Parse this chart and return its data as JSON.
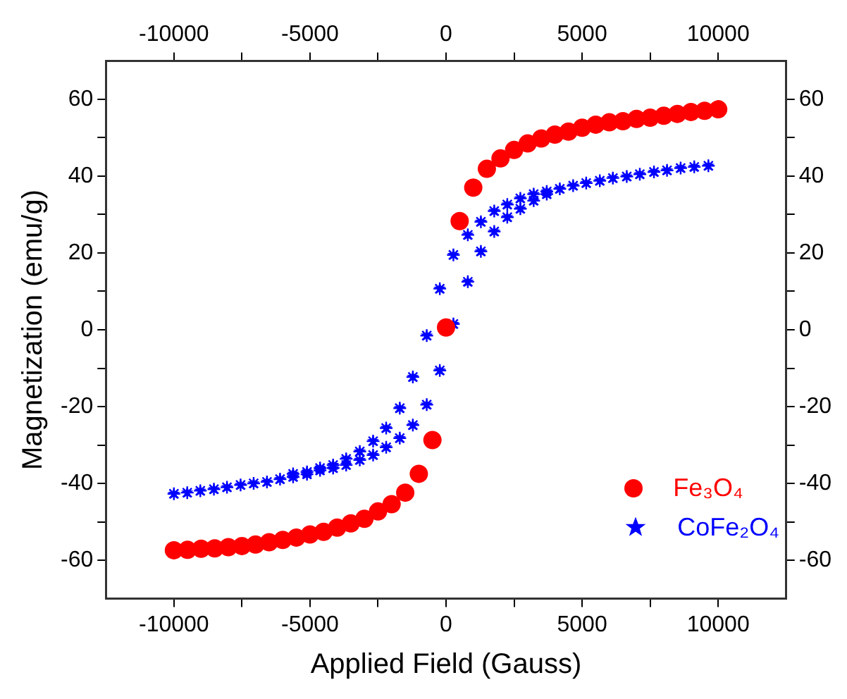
{
  "chart_data": {
    "type": "scatter",
    "xlabel": "Applied Field (Gauss)",
    "ylabel": "Magnetization (emu/g)",
    "xlim": [
      -12500,
      12500
    ],
    "ylim": [
      -70,
      70
    ],
    "x2lim": [
      -12500,
      12500
    ],
    "y2lim": [
      -70,
      70
    ],
    "xticks": [
      -10000,
      {
        "value": -7500,
        "label": null
      },
      -5000,
      {
        "value": -2500,
        "label": null
      },
      0,
      {
        "value": 2500,
        "label": null
      },
      5000,
      {
        "value": 7500,
        "label": null
      },
      10000
    ],
    "x2ticks": [
      -10000,
      {
        "value": -7500,
        "label": null
      },
      -5000,
      {
        "value": -2500,
        "label": null
      },
      0,
      {
        "value": 2500,
        "label": null
      },
      5000,
      {
        "value": 7500,
        "label": null
      },
      10000
    ],
    "yticks": [
      -60,
      {
        "value": -50,
        "label": null
      },
      -40,
      {
        "value": -30,
        "label": null
      },
      -20,
      {
        "value": -10,
        "label": null
      },
      0,
      {
        "value": 10,
        "label": null
      },
      20,
      {
        "value": 30,
        "label": null
      },
      40,
      {
        "value": 50,
        "label": null
      },
      60
    ],
    "y2ticks": [
      -60,
      {
        "value": -50,
        "label": null
      },
      -40,
      {
        "value": -30,
        "label": null
      },
      -20,
      {
        "value": -10,
        "label": null
      },
      0,
      {
        "value": 10,
        "label": null
      },
      20,
      {
        "value": 30,
        "label": null
      },
      40,
      {
        "value": 50,
        "label": null
      },
      60
    ],
    "grid": false,
    "legend": "bottom right",
    "series": [
      {
        "name": "Fe₃O₄",
        "color": "#ff0000",
        "marker": "circle",
        "x": [
          -10000,
          -9500,
          -9000,
          -8500,
          -8000,
          -7500,
          -7000,
          -6500,
          -6000,
          -5500,
          -5000,
          -4500,
          -4000,
          -3500,
          -3000,
          -2500,
          -2000,
          -1500,
          -1000,
          -500,
          0,
          500,
          1000,
          1500,
          2000,
          2500,
          3000,
          3500,
          4000,
          4500,
          5000,
          5500,
          6000,
          6500,
          7000,
          7500,
          8000,
          8500,
          9000,
          9500,
          10000
        ],
        "values": [
          -57.4,
          -57.3,
          -57.0,
          -56.9,
          -56.6,
          -56.3,
          -55.9,
          -55.3,
          -54.7,
          -54.1,
          -53.3,
          -52.6,
          -51.5,
          -50.4,
          -49.2,
          -47.3,
          -45.4,
          -42.4,
          -37.5,
          -28.7,
          0.6,
          28.3,
          37.0,
          41.9,
          44.6,
          46.8,
          48.5,
          49.8,
          50.8,
          51.6,
          52.6,
          53.4,
          54.0,
          54.3,
          54.9,
          55.2,
          55.7,
          56.2,
          56.7,
          57.0,
          57.4
        ]
      },
      {
        "name": "CoFe₂O₄",
        "color": "#0000ff",
        "marker": "star",
        "x": [
          -10000,
          -9510,
          -9030,
          -8530,
          -8050,
          -7550,
          -7070,
          -6580,
          -6100,
          -5620,
          -5110,
          -4630,
          -4150,
          -3670,
          -3170,
          -2680,
          -2200,
          -1700,
          -1220,
          -710,
          -230,
          270,
          800,
          1280,
          1770,
          2250,
          2730,
          3220,
          3700,
          4180,
          -5620,
          -5110,
          -4630,
          -4150,
          -3670,
          -3170,
          -2680,
          -2200,
          -1700,
          -1220,
          -710,
          -230,
          270,
          800,
          1280,
          1770,
          2250,
          2730,
          3220,
          3700,
          4670,
          5150,
          5650,
          6130,
          6640,
          7120,
          7640,
          8120,
          8620,
          9120,
          9640
        ],
        "values": [
          -42.7,
          -42.4,
          -41.9,
          -41.5,
          -41.0,
          -40.4,
          -40.0,
          -39.6,
          -38.9,
          -38.3,
          -37.6,
          -36.6,
          -36.0,
          -35.2,
          -33.9,
          -32.6,
          -30.6,
          -28.2,
          -24.8,
          -19.5,
          -10.6,
          1.5,
          12.5,
          20.4,
          25.6,
          29.3,
          31.5,
          33.6,
          35.3,
          36.7,
          -37.5,
          -37.0,
          -36.0,
          -35.2,
          -33.6,
          -31.7,
          -29.0,
          -25.6,
          -20.4,
          -12.3,
          -1.5,
          10.7,
          19.5,
          24.7,
          28.1,
          30.9,
          32.6,
          34.2,
          35.3,
          36.0,
          37.5,
          38.2,
          38.8,
          39.5,
          39.9,
          40.5,
          41.1,
          41.5,
          42.1,
          42.4,
          42.7
        ]
      }
    ]
  }
}
